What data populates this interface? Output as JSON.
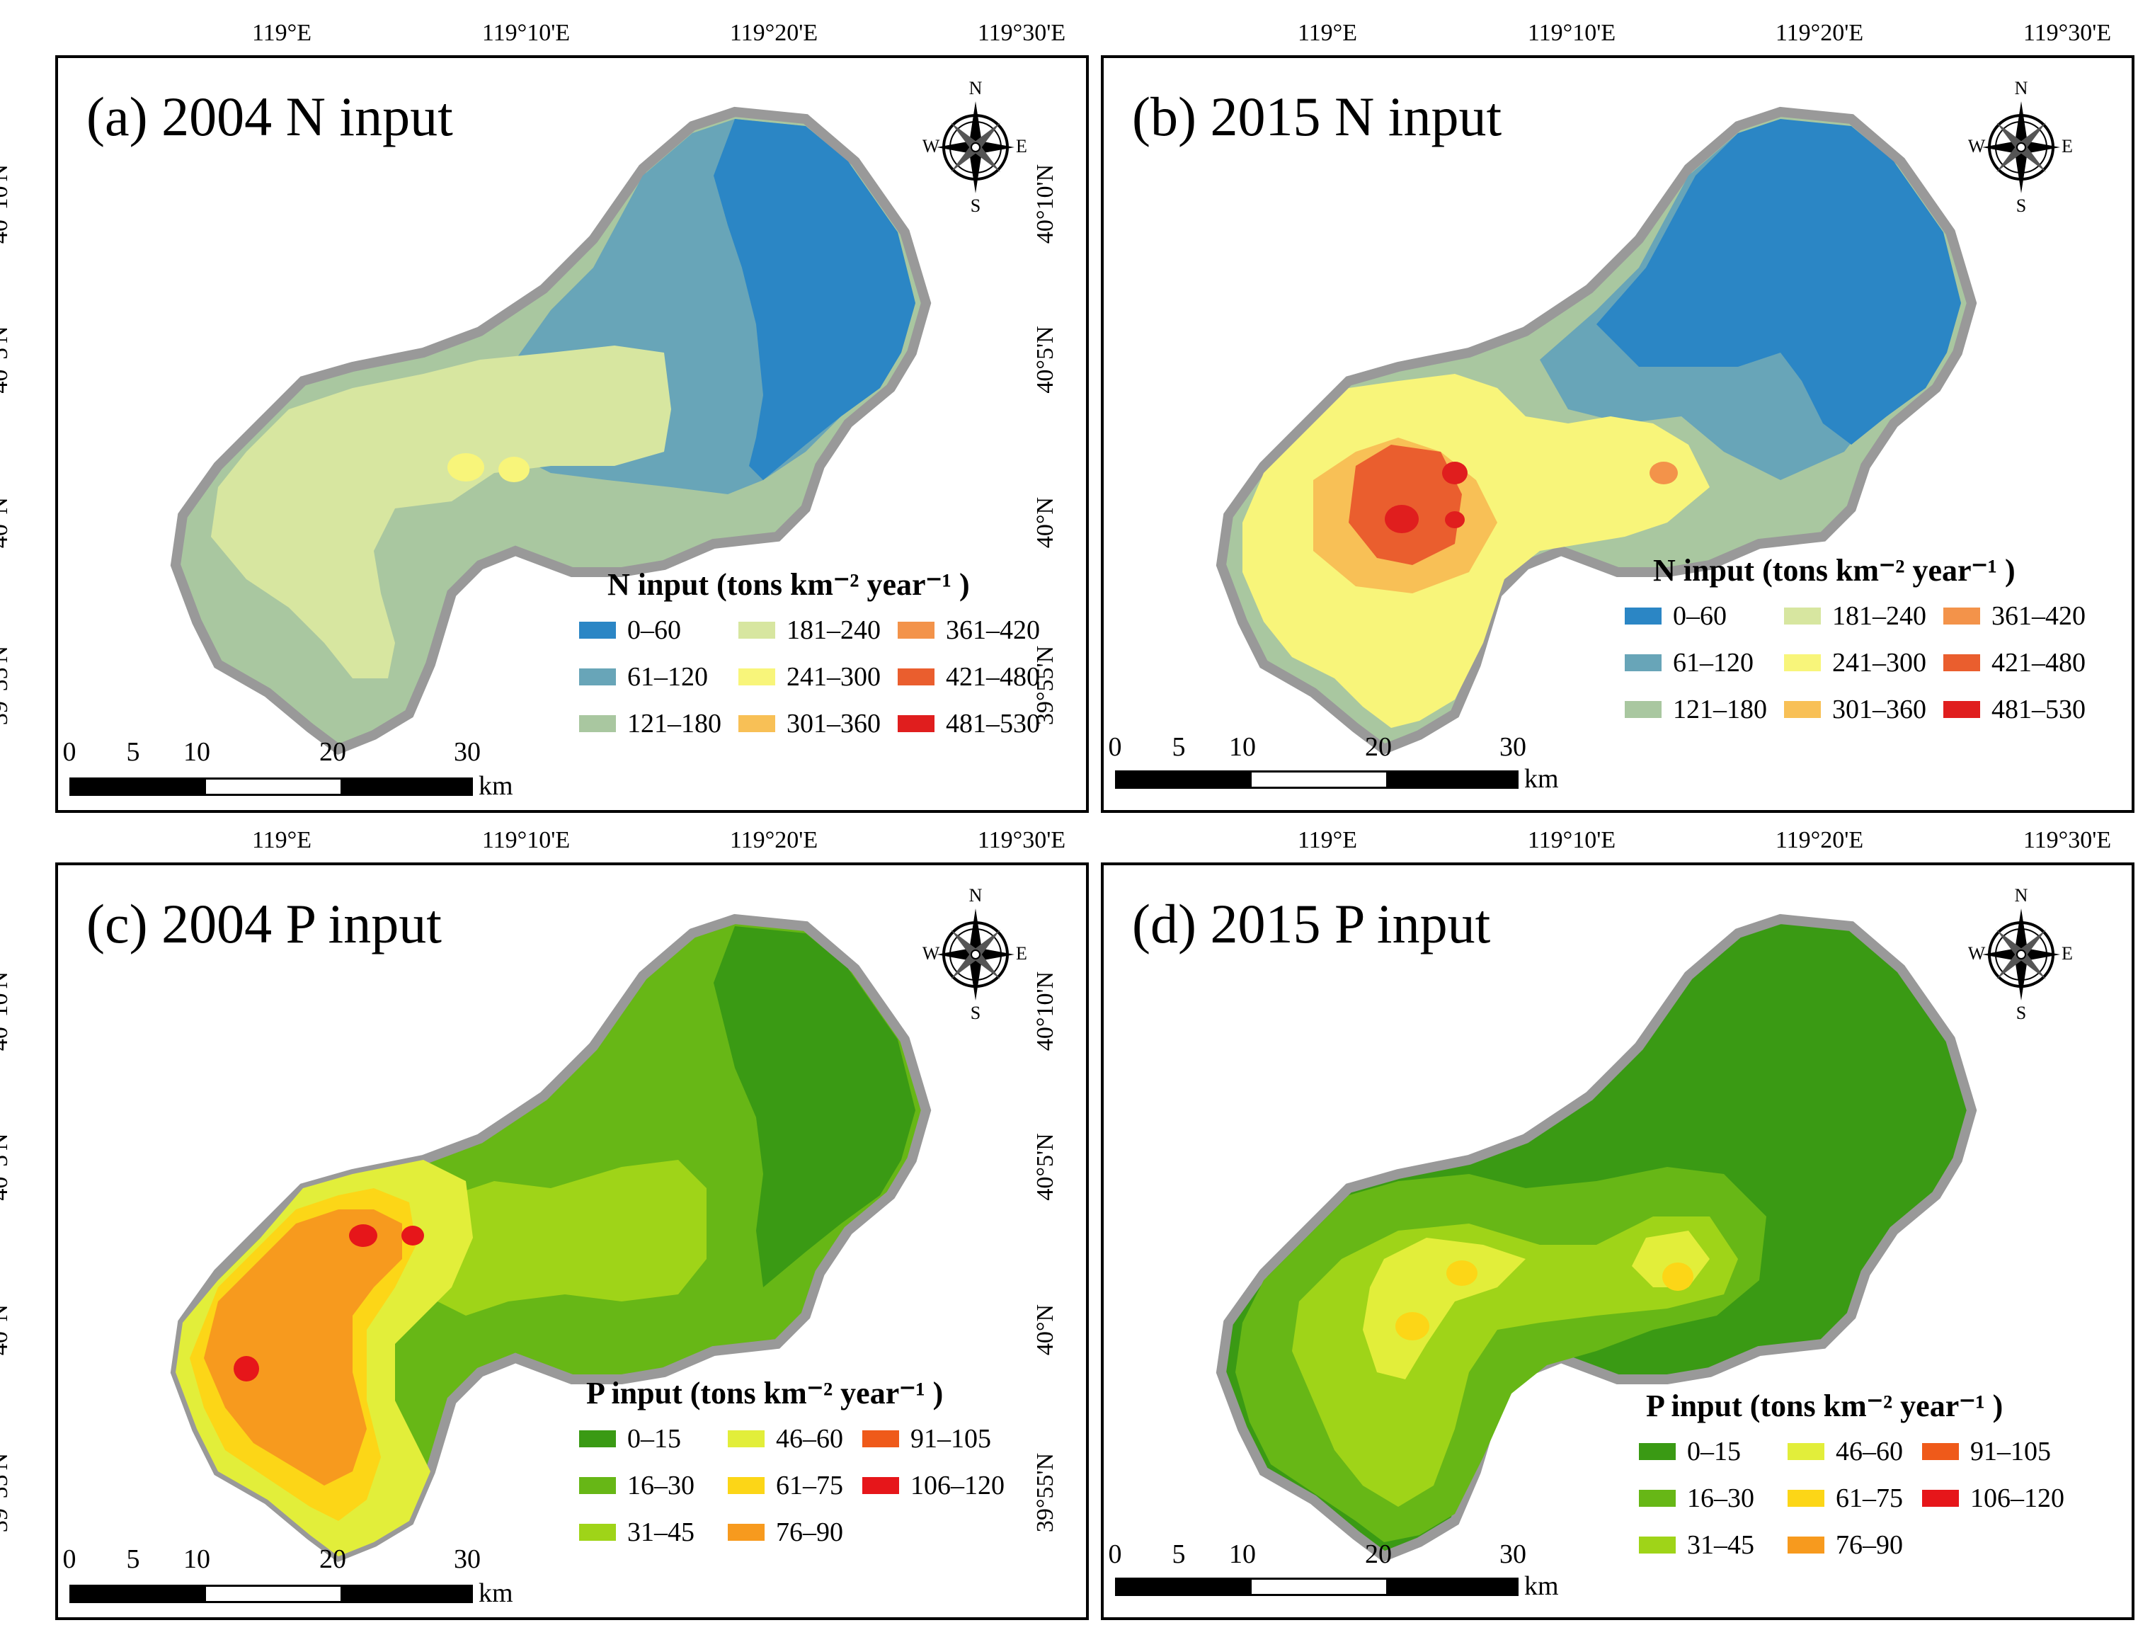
{
  "panels": [
    {
      "title": "(a) 2004 N input",
      "legend_title": "N input (tons km⁻² year⁻¹ )",
      "classes": [
        {
          "label": "0–60",
          "color": "#2b86c5"
        },
        {
          "label": "61–120",
          "color": "#68a5b8"
        },
        {
          "label": "121–180",
          "color": "#a9c7a0"
        },
        {
          "label": "181–240",
          "color": "#d7e6a0"
        },
        {
          "label": "241–300",
          "color": "#f8f57a"
        },
        {
          "label": "301–360",
          "color": "#f8c056"
        },
        {
          "label": "361–420",
          "color": "#f3934a"
        },
        {
          "label": "421–480",
          "color": "#ea5e2e"
        },
        {
          "label": "481–530",
          "color": "#e01e1e"
        }
      ]
    },
    {
      "title": "(b) 2015 N input",
      "legend_title": "N input (tons km⁻² year⁻¹ )",
      "classes": [
        {
          "label": "0–60",
          "color": "#2b86c5"
        },
        {
          "label": "61–120",
          "color": "#68a5b8"
        },
        {
          "label": "121–180",
          "color": "#a9c7a0"
        },
        {
          "label": "181–240",
          "color": "#d7e6a0"
        },
        {
          "label": "241–300",
          "color": "#f8f57a"
        },
        {
          "label": "301–360",
          "color": "#f8c056"
        },
        {
          "label": "361–420",
          "color": "#f3934a"
        },
        {
          "label": "421–480",
          "color": "#ea5e2e"
        },
        {
          "label": "481–530",
          "color": "#e01e1e"
        }
      ]
    },
    {
      "title": "(c) 2004 P input",
      "legend_title": "P input (tons km⁻² year⁻¹ )",
      "classes": [
        {
          "label": "0–15",
          "color": "#3a9a14"
        },
        {
          "label": "16–30",
          "color": "#67b716"
        },
        {
          "label": "31–45",
          "color": "#9fd418"
        },
        {
          "label": "46–60",
          "color": "#e2ee3a"
        },
        {
          "label": "61–75",
          "color": "#fcd617"
        },
        {
          "label": "76–90",
          "color": "#f79a1e"
        },
        {
          "label": "91–105",
          "color": "#ef5a1a"
        },
        {
          "label": "106–120",
          "color": "#e6161a"
        }
      ]
    },
    {
      "title": "(d) 2015 P input",
      "legend_title": "P input (tons km⁻² year⁻¹ )",
      "classes": [
        {
          "label": "0–15",
          "color": "#3a9a14"
        },
        {
          "label": "16–30",
          "color": "#67b716"
        },
        {
          "label": "31–45",
          "color": "#9fd418"
        },
        {
          "label": "46–60",
          "color": "#e2ee3a"
        },
        {
          "label": "61–75",
          "color": "#fcd617"
        },
        {
          "label": "76–90",
          "color": "#f79a1e"
        },
        {
          "label": "91–105",
          "color": "#ef5a1a"
        },
        {
          "label": "106–120",
          "color": "#e6161a"
        }
      ]
    }
  ],
  "axes": {
    "lon_labels": [
      "119°E",
      "119°10'E",
      "119°20'E",
      "119°30'E"
    ],
    "lat_labels": [
      "40°10'N",
      "40°5'N",
      "40°N",
      "39°55'N"
    ]
  },
  "compass": {
    "n": "N",
    "s": "S",
    "e": "E",
    "w": "W"
  },
  "scalebar": {
    "ticks": [
      "0",
      "5",
      "10",
      "20",
      "30"
    ],
    "unit": "km"
  }
}
